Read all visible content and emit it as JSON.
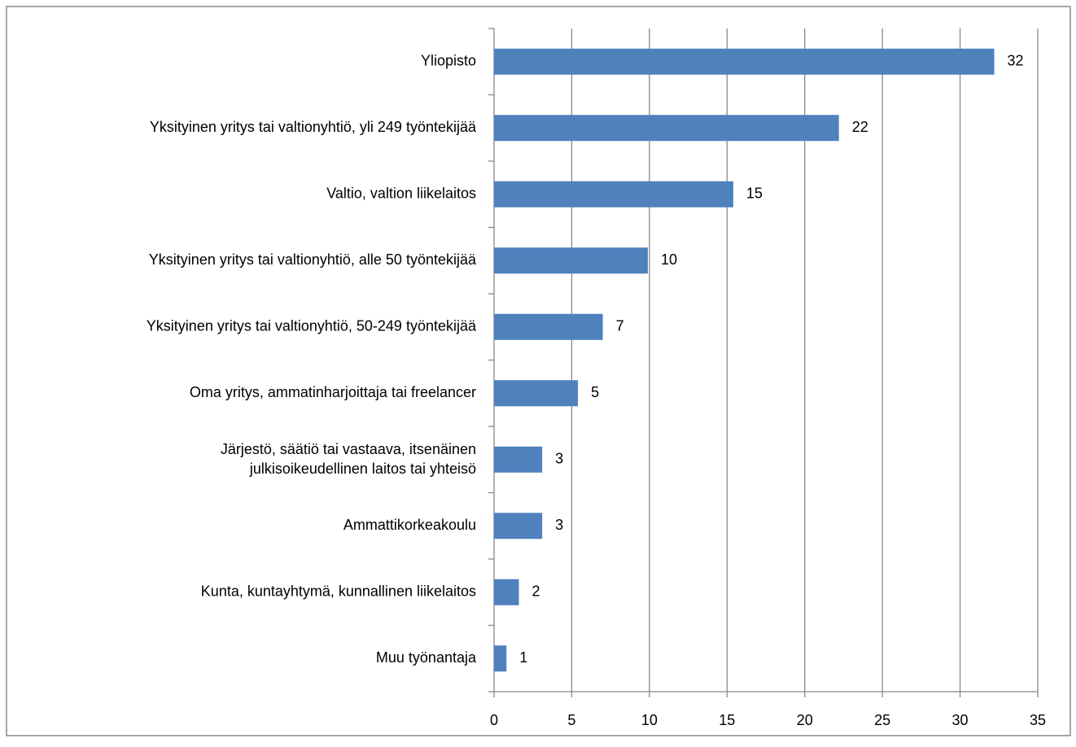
{
  "chart_data": {
    "type": "bar",
    "orientation": "horizontal",
    "categories": [
      "Yliopisto",
      "Yksityinen yritys tai valtionyhtiö, yli 249 työntekijää",
      "Valtio, valtion liikelaitos",
      "Yksityinen yritys tai valtionyhtiö, alle 50 työntekijää",
      "Yksityinen yritys tai valtionyhtiö, 50-249 työntekijää",
      "Oma yritys, ammatinharjoittaja tai freelancer",
      "Järjestö, säätiö tai vastaava, itsenäinen\njulkisoikeudellinen laitos tai yhteisö",
      "Ammattikorkeakoulu",
      "Kunta, kuntayhtymä, kunnallinen liikelaitos",
      "Muu työnantaja"
    ],
    "values": [
      32.2,
      22.2,
      15.4,
      9.9,
      7.0,
      5.4,
      3.1,
      3.1,
      1.6,
      0.8
    ],
    "value_labels": [
      "32",
      "22",
      "15",
      "10",
      "7",
      "5",
      "3",
      "3",
      "2",
      "1"
    ],
    "color": "#4f81bd",
    "xlim": [
      0,
      35
    ],
    "xticks": [
      0,
      5,
      10,
      15,
      20,
      25,
      30,
      35
    ],
    "grid": true
  }
}
